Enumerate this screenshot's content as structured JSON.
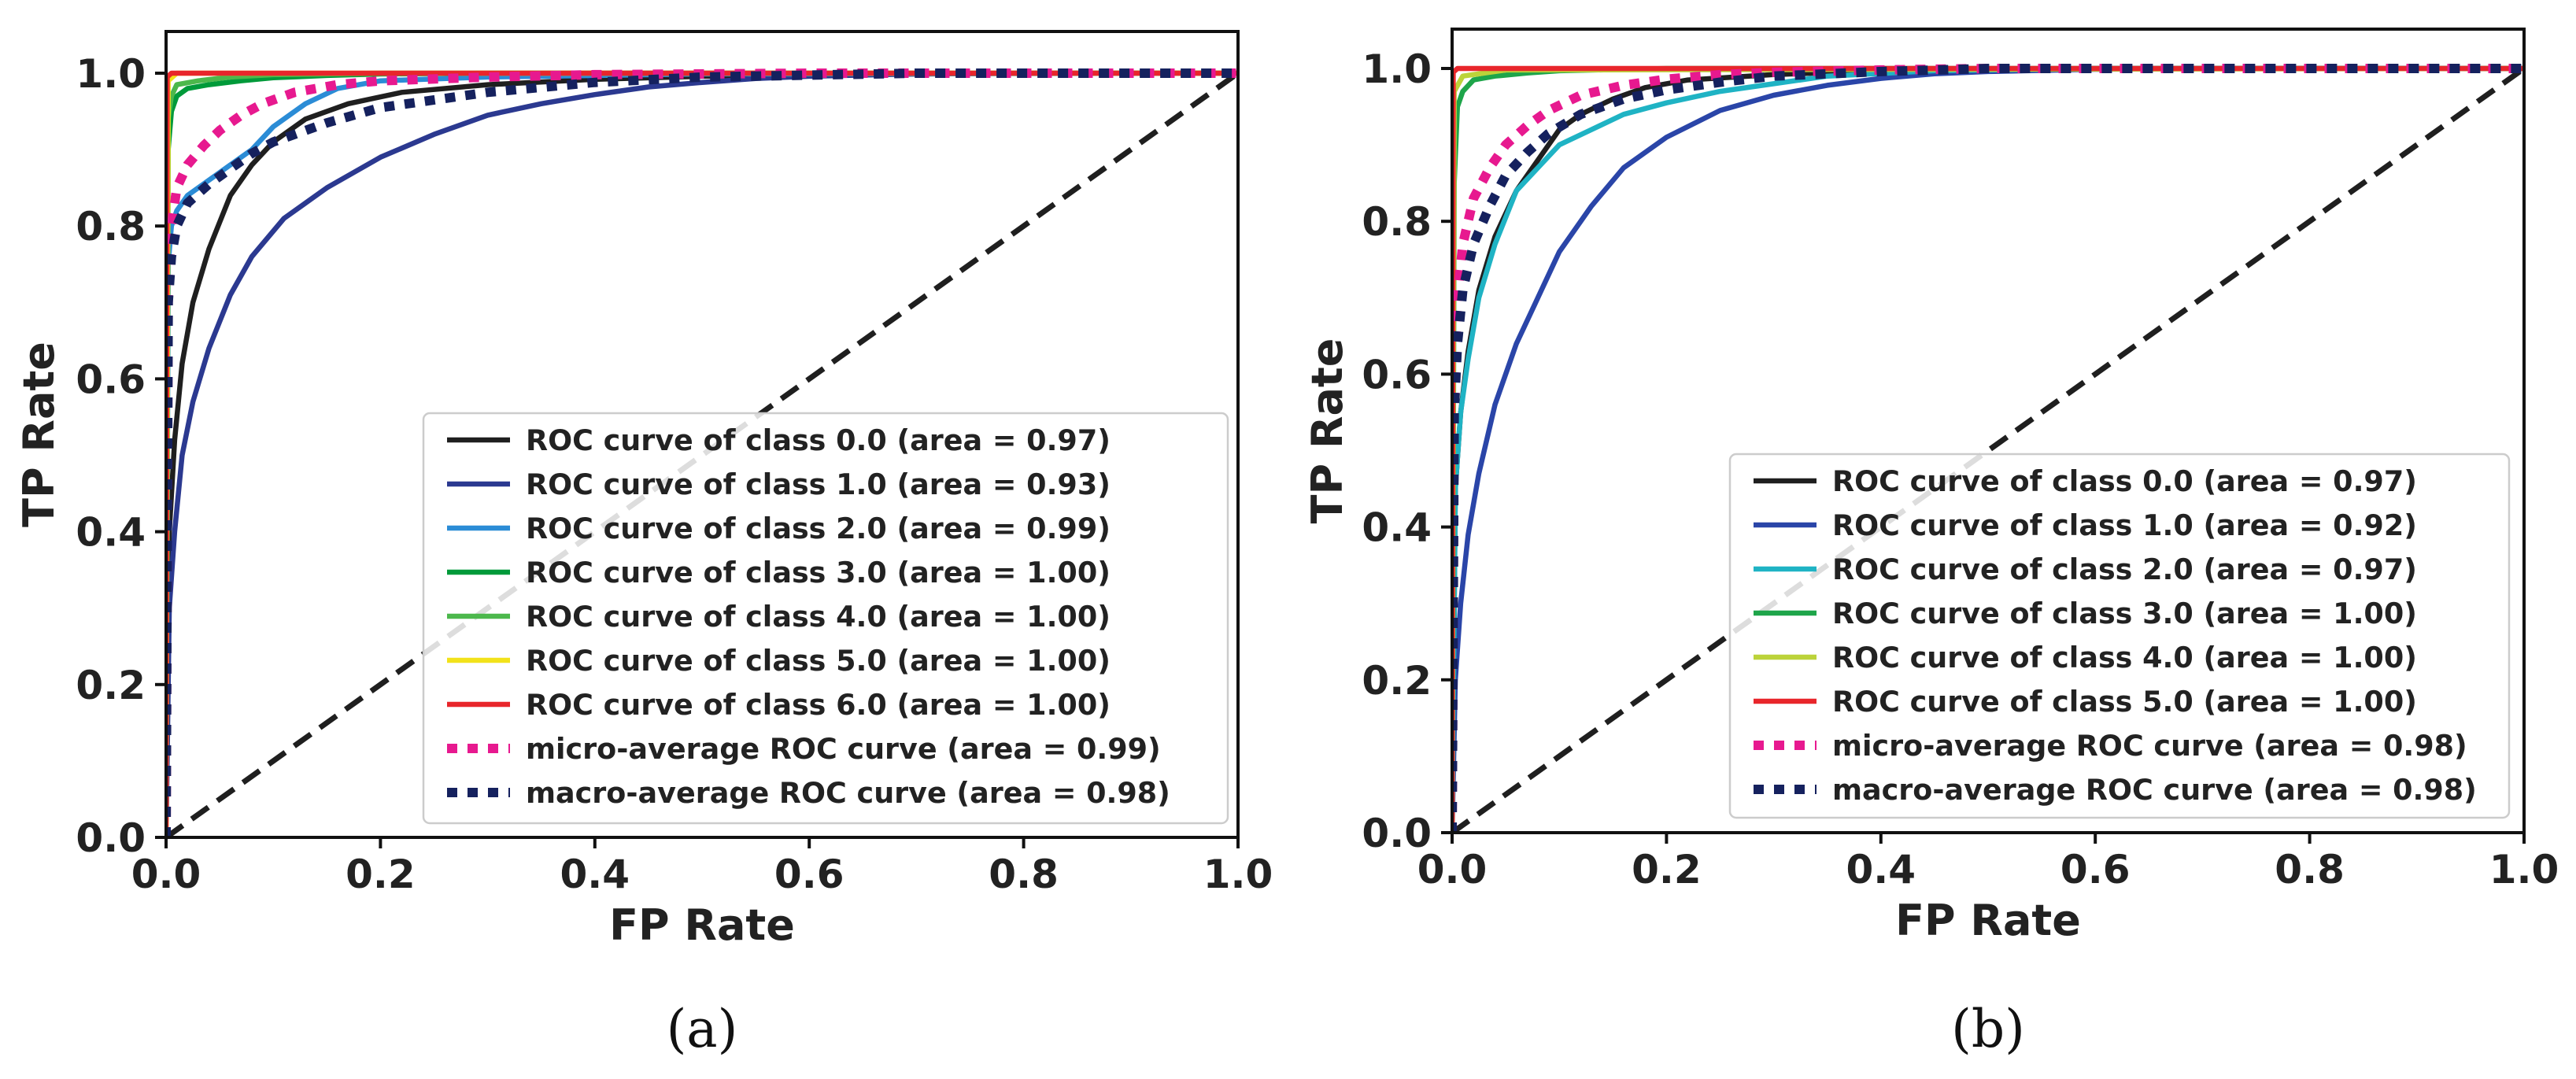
{
  "chart_data": [
    {
      "type": "line",
      "panel": "a",
      "caption": "(a)",
      "xlabel": "FP Rate",
      "ylabel": "TP Rate",
      "xlim": [
        0.0,
        1.0
      ],
      "ylim": [
        0.0,
        1.0
      ],
      "xticks": [
        "0.0",
        "0.2",
        "0.4",
        "0.6",
        "0.8",
        "1.0"
      ],
      "yticks": [
        "0.0",
        "0.2",
        "0.4",
        "0.6",
        "0.8",
        "1.0"
      ],
      "legend_position": "lower-right",
      "series": [
        {
          "name": "ROC curve of class 0.0 (area = 0.97)",
          "color": "#1f1f1f",
          "style": "solid",
          "x": [
            0,
            0.003,
            0.008,
            0.015,
            0.025,
            0.04,
            0.06,
            0.08,
            0.1,
            0.13,
            0.17,
            0.22,
            0.3,
            0.4,
            0.5,
            0.6,
            0.8,
            1.0
          ],
          "y": [
            0,
            0.4,
            0.52,
            0.62,
            0.7,
            0.77,
            0.84,
            0.88,
            0.91,
            0.94,
            0.96,
            0.975,
            0.985,
            0.992,
            0.996,
            0.998,
            1.0,
            1.0
          ]
        },
        {
          "name": "ROC curve of class 1.0 (area = 0.93)",
          "color": "#2b3990",
          "style": "solid",
          "x": [
            0,
            0.003,
            0.008,
            0.015,
            0.025,
            0.04,
            0.06,
            0.08,
            0.11,
            0.15,
            0.2,
            0.25,
            0.3,
            0.35,
            0.4,
            0.45,
            0.5,
            0.55,
            0.6,
            0.7,
            0.8,
            1.0
          ],
          "y": [
            0,
            0.3,
            0.4,
            0.5,
            0.57,
            0.64,
            0.71,
            0.76,
            0.81,
            0.85,
            0.89,
            0.92,
            0.945,
            0.96,
            0.972,
            0.982,
            0.988,
            0.993,
            0.996,
            0.999,
            1.0,
            1.0
          ]
        },
        {
          "name": "ROC curve of class 2.0 (area = 0.99)",
          "color": "#2b8cd6",
          "style": "solid",
          "x": [
            0,
            0.002,
            0.005,
            0.01,
            0.02,
            0.04,
            0.06,
            0.08,
            0.1,
            0.13,
            0.16,
            0.2,
            0.3,
            0.5,
            1.0
          ],
          "y": [
            0,
            0.75,
            0.8,
            0.82,
            0.84,
            0.86,
            0.88,
            0.9,
            0.93,
            0.96,
            0.98,
            0.99,
            0.995,
            0.999,
            1.0
          ]
        },
        {
          "name": "ROC curve of class 3.0 (area = 1.00)",
          "color": "#009a3a",
          "style": "solid",
          "x": [
            0,
            0.002,
            0.005,
            0.01,
            0.02,
            0.04,
            0.07,
            0.1,
            0.15,
            0.2,
            0.3,
            1.0
          ],
          "y": [
            0,
            0.9,
            0.95,
            0.97,
            0.98,
            0.985,
            0.99,
            0.994,
            0.997,
            0.999,
            1.0,
            1.0
          ]
        },
        {
          "name": "ROC curve of class 4.0 (area = 1.00)",
          "color": "#4cb84c",
          "style": "solid",
          "x": [
            0,
            0.002,
            0.005,
            0.01,
            0.03,
            0.06,
            0.1,
            0.2,
            1.0
          ],
          "y": [
            0,
            0.94,
            0.97,
            0.985,
            0.99,
            0.995,
            0.998,
            1.0,
            1.0
          ]
        },
        {
          "name": "ROC curve of class 5.0 (area = 1.00)",
          "color": "#f2e21a",
          "style": "solid",
          "x": [
            0,
            0.002,
            0.01,
            1.0
          ],
          "y": [
            0,
            0.99,
            1.0,
            1.0
          ]
        },
        {
          "name": "ROC curve of class 6.0 (area = 1.00)",
          "color": "#e8262b",
          "style": "solid",
          "x": [
            0,
            0.001,
            0.005,
            1.0
          ],
          "y": [
            0,
            0.995,
            1.0,
            1.0
          ]
        },
        {
          "name": "micro-average ROC curve (area = 0.99)",
          "color": "#e7198f",
          "style": "dotted",
          "x": [
            0,
            0.002,
            0.005,
            0.01,
            0.02,
            0.035,
            0.05,
            0.07,
            0.09,
            0.12,
            0.16,
            0.2,
            0.3,
            0.4,
            0.6,
            1.0
          ],
          "y": [
            0,
            0.72,
            0.8,
            0.85,
            0.88,
            0.905,
            0.925,
            0.945,
            0.96,
            0.975,
            0.985,
            0.99,
            0.995,
            0.998,
            1.0,
            1.0
          ]
        },
        {
          "name": "macro-average ROC curve (area = 0.98)",
          "color": "#15215e",
          "style": "dotted",
          "x": [
            0,
            0.002,
            0.005,
            0.01,
            0.02,
            0.04,
            0.06,
            0.08,
            0.1,
            0.15,
            0.2,
            0.3,
            0.4,
            0.5,
            0.7,
            1.0
          ],
          "y": [
            0,
            0.7,
            0.76,
            0.8,
            0.83,
            0.855,
            0.875,
            0.895,
            0.91,
            0.935,
            0.955,
            0.975,
            0.988,
            0.995,
            1.0,
            1.0
          ]
        },
        {
          "name": "chance",
          "color": "#1f1f1f",
          "style": "dashed",
          "legend": false,
          "x": [
            0,
            1
          ],
          "y": [
            0,
            1
          ]
        }
      ]
    },
    {
      "type": "line",
      "panel": "b",
      "caption": "(b)",
      "xlabel": "FP Rate",
      "ylabel": "TP Rate",
      "xlim": [
        0.0,
        1.0
      ],
      "ylim": [
        0.0,
        1.0
      ],
      "xticks": [
        "0.0",
        "0.2",
        "0.4",
        "0.6",
        "0.8",
        "1.0"
      ],
      "yticks": [
        "0.0",
        "0.2",
        "0.4",
        "0.6",
        "0.8",
        "1.0"
      ],
      "legend_position": "lower-right",
      "series": [
        {
          "name": "ROC curve of class 0.0 (area = 0.97)",
          "color": "#1f1f1f",
          "style": "solid",
          "x": [
            0,
            0.003,
            0.008,
            0.015,
            0.025,
            0.04,
            0.06,
            0.08,
            0.1,
            0.12,
            0.15,
            0.18,
            0.22,
            0.3,
            0.4,
            0.6,
            1.0
          ],
          "y": [
            0,
            0.45,
            0.55,
            0.63,
            0.71,
            0.78,
            0.84,
            0.88,
            0.92,
            0.94,
            0.96,
            0.975,
            0.985,
            0.992,
            0.997,
            1.0,
            1.0
          ]
        },
        {
          "name": "ROC curve of class 1.0 (area = 0.92)",
          "color": "#2a45a8",
          "style": "solid",
          "x": [
            0,
            0.003,
            0.008,
            0.015,
            0.025,
            0.04,
            0.06,
            0.08,
            0.1,
            0.13,
            0.16,
            0.2,
            0.25,
            0.3,
            0.35,
            0.4,
            0.45,
            0.5,
            0.6,
            0.7,
            1.0
          ],
          "y": [
            0,
            0.2,
            0.3,
            0.39,
            0.47,
            0.56,
            0.64,
            0.7,
            0.76,
            0.82,
            0.87,
            0.91,
            0.945,
            0.965,
            0.978,
            0.987,
            0.993,
            0.996,
            0.999,
            1.0,
            1.0
          ]
        },
        {
          "name": "ROC curve of class 2.0 (area = 0.97)",
          "color": "#1fb3c4",
          "style": "solid",
          "x": [
            0,
            0.003,
            0.008,
            0.015,
            0.025,
            0.04,
            0.06,
            0.08,
            0.1,
            0.13,
            0.16,
            0.2,
            0.25,
            0.3,
            0.35,
            0.45,
            0.6,
            1.0
          ],
          "y": [
            0,
            0.45,
            0.55,
            0.62,
            0.7,
            0.77,
            0.84,
            0.87,
            0.9,
            0.92,
            0.94,
            0.955,
            0.97,
            0.98,
            0.99,
            0.997,
            1.0,
            1.0
          ]
        },
        {
          "name": "ROC curve of class 3.0 (area = 1.00)",
          "color": "#1ea54a",
          "style": "solid",
          "x": [
            0,
            0.002,
            0.005,
            0.01,
            0.02,
            0.04,
            0.07,
            0.1,
            0.2,
            1.0
          ],
          "y": [
            0,
            0.85,
            0.95,
            0.97,
            0.985,
            0.99,
            0.994,
            0.997,
            1.0,
            1.0
          ]
        },
        {
          "name": "ROC curve of class 4.0 (area = 1.00)",
          "color": "#bcd33a",
          "style": "solid",
          "x": [
            0,
            0.002,
            0.01,
            0.05,
            1.0
          ],
          "y": [
            0,
            0.97,
            0.99,
            0.998,
            1.0
          ]
        },
        {
          "name": "ROC curve of class 5.0 (area = 1.00)",
          "color": "#e8262b",
          "style": "solid",
          "x": [
            0,
            0.001,
            0.005,
            1.0
          ],
          "y": [
            0,
            0.995,
            1.0,
            1.0
          ]
        },
        {
          "name": "micro-average ROC curve (area = 0.98)",
          "color": "#e7198f",
          "style": "dotted",
          "x": [
            0,
            0.002,
            0.005,
            0.01,
            0.02,
            0.035,
            0.05,
            0.07,
            0.09,
            0.12,
            0.16,
            0.2,
            0.25,
            0.3,
            0.4,
            0.5,
            1.0
          ],
          "y": [
            0,
            0.6,
            0.7,
            0.77,
            0.83,
            0.87,
            0.9,
            0.925,
            0.945,
            0.965,
            0.978,
            0.986,
            0.992,
            0.995,
            0.998,
            1.0,
            1.0
          ]
        },
        {
          "name": "macro-average ROC curve (area = 0.98)",
          "color": "#15215e",
          "style": "dotted",
          "x": [
            0,
            0.002,
            0.005,
            0.01,
            0.02,
            0.035,
            0.05,
            0.07,
            0.09,
            0.12,
            0.16,
            0.2,
            0.25,
            0.3,
            0.4,
            0.5,
            1.0
          ],
          "y": [
            0,
            0.55,
            0.64,
            0.71,
            0.77,
            0.82,
            0.86,
            0.89,
            0.915,
            0.94,
            0.96,
            0.972,
            0.982,
            0.99,
            0.996,
            1.0,
            1.0
          ]
        },
        {
          "name": "chance",
          "color": "#1f1f1f",
          "style": "dashed",
          "legend": false,
          "x": [
            0,
            1
          ],
          "y": [
            0,
            1
          ]
        }
      ]
    }
  ]
}
